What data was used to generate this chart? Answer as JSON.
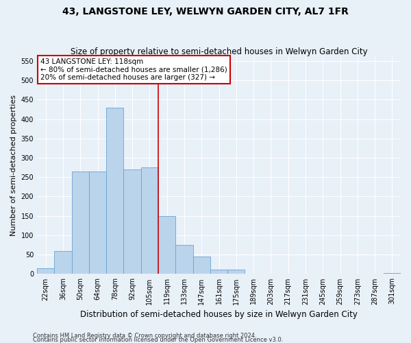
{
  "title": "43, LANGSTONE LEY, WELWYN GARDEN CITY, AL7 1FR",
  "subtitle": "Size of property relative to semi-detached houses in Welwyn Garden City",
  "xlabel": "Distribution of semi-detached houses by size in Welwyn Garden City",
  "ylabel": "Number of semi-detached properties",
  "footer_line1": "Contains HM Land Registry data © Crown copyright and database right 2024.",
  "footer_line2": "Contains public sector information licensed under the Open Government Licence v3.0.",
  "categories": [
    "22sqm",
    "36sqm",
    "50sqm",
    "64sqm",
    "78sqm",
    "92sqm",
    "105sqm",
    "119sqm",
    "133sqm",
    "147sqm",
    "161sqm",
    "175sqm",
    "189sqm",
    "203sqm",
    "217sqm",
    "231sqm",
    "245sqm",
    "259sqm",
    "273sqm",
    "287sqm",
    "301sqm"
  ],
  "values": [
    15,
    60,
    265,
    265,
    430,
    270,
    275,
    150,
    75,
    45,
    12,
    12,
    0,
    0,
    0,
    0,
    0,
    0,
    0,
    0,
    2
  ],
  "bar_color": "#bad4ec",
  "bar_edge_color": "#6aa3d4",
  "ref_line_index": 7,
  "ref_line_color": "#cc0000",
  "annotation_text": "43 LANGSTONE LEY: 118sqm\n← 80% of semi-detached houses are smaller (1,286)\n20% of semi-detached houses are larger (327) →",
  "annotation_box_color": "#ffffff",
  "annotation_box_edge_color": "#cc0000",
  "ylim": [
    0,
    560
  ],
  "yticks": [
    0,
    50,
    100,
    150,
    200,
    250,
    300,
    350,
    400,
    450,
    500,
    550
  ],
  "bg_color": "#e8f0f8",
  "plot_bg_color": "#e8f0f8",
  "title_fontsize": 10,
  "subtitle_fontsize": 8.5,
  "tick_fontsize": 7,
  "ylabel_fontsize": 8,
  "xlabel_fontsize": 8.5,
  "footer_fontsize": 6,
  "annotation_fontsize": 7.5
}
